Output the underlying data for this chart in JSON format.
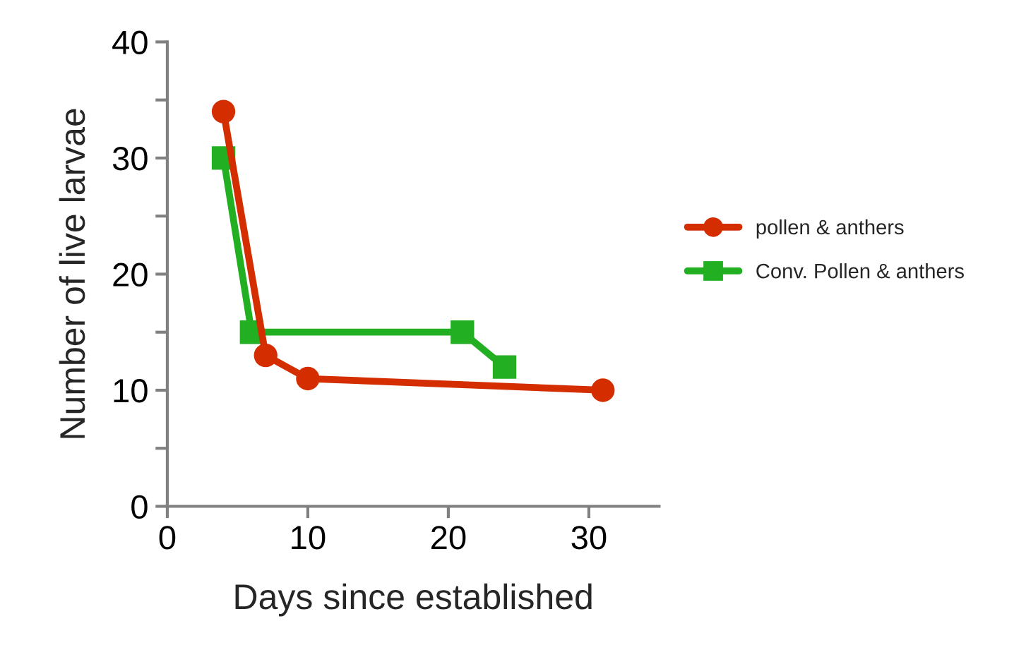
{
  "chart_data": {
    "type": "line",
    "xlabel": "Days since established",
    "ylabel": "Number of live larvae",
    "series": [
      {
        "name": "pollen & anthers",
        "color": "#d42e00",
        "marker": "circle",
        "x": [
          4,
          7,
          10,
          31
        ],
        "values": [
          34,
          13,
          11,
          10
        ]
      },
      {
        "name": "Conv. Pollen & anthers",
        "color": "#22b022",
        "marker": "square",
        "x": [
          4,
          6,
          21,
          24
        ],
        "values": [
          30,
          15,
          15,
          12
        ]
      }
    ],
    "xlim": [
      0,
      35
    ],
    "xticks": [
      0,
      10,
      20,
      30
    ],
    "ylim": [
      0,
      40
    ],
    "yticks": [
      0,
      {
        "value": 5,
        "label": null
      },
      10,
      {
        "value": 15,
        "label": null
      },
      20,
      {
        "value": 25,
        "label": null
      },
      30,
      {
        "value": 35,
        "label": null
      },
      40
    ],
    "grid": false,
    "legend": "right",
    "line_style": "solid"
  }
}
